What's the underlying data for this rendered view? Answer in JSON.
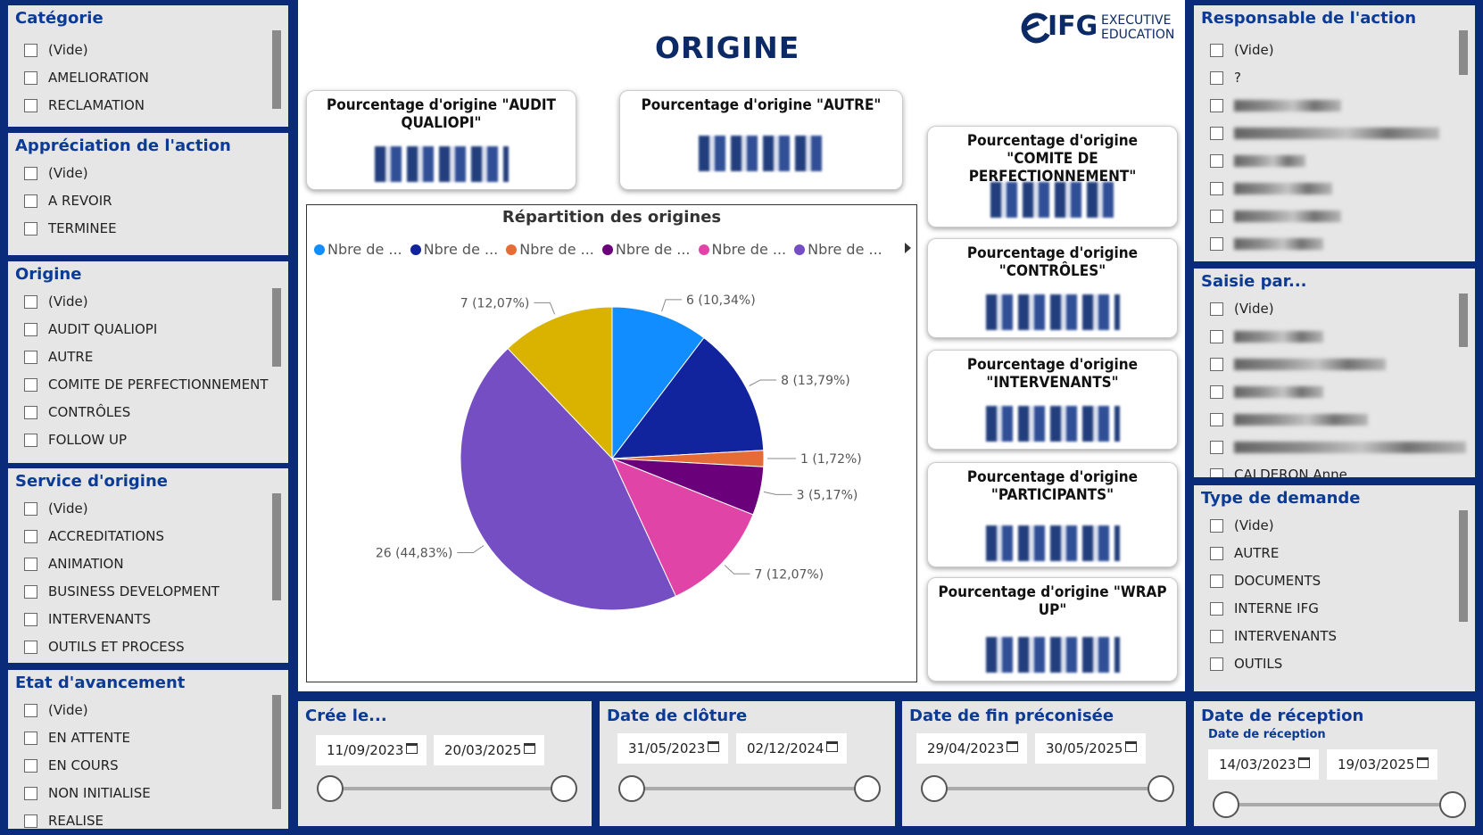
{
  "left_slicers": [
    {
      "title": "Catégorie",
      "items": [
        "(Vide)",
        "AMELIORATION",
        "RECLAMATION"
      ]
    },
    {
      "title": "Appréciation de l'action",
      "items": [
        "(Vide)",
        "A REVOIR",
        "TERMINEE"
      ]
    },
    {
      "title": "Origine",
      "items": [
        "(Vide)",
        "AUDIT QUALIOPI",
        "AUTRE",
        "COMITE DE PERFECTIONNEMENT",
        "CONTRÔLES",
        "FOLLOW UP"
      ]
    },
    {
      "title": "Service d'origine",
      "items": [
        "(Vide)",
        "ACCREDITATIONS",
        "ANIMATION",
        "BUSINESS DEVELOPMENT",
        "INTERVENANTS",
        "OUTILS ET PROCESS"
      ]
    },
    {
      "title": "Etat d'avancement",
      "items": [
        "(Vide)",
        "EN ATTENTE",
        "EN COURS",
        "NON INITIALISE",
        "REALISE"
      ]
    }
  ],
  "right_slicers": [
    {
      "title": "Responsable de l'action",
      "items": [
        "(Vide)",
        "?",
        "",
        "",
        "",
        "",
        "",
        ""
      ]
    },
    {
      "title": "Saisie par...",
      "items": [
        "(Vide)",
        "",
        "",
        "",
        "",
        "",
        "CALDERON Anne"
      ]
    },
    {
      "title": "Type de demande",
      "items": [
        "(Vide)",
        "AUTRE",
        "DOCUMENTS",
        "INTERNE IFG",
        "INTERVENANTS",
        "OUTILS"
      ]
    }
  ],
  "header": {
    "title": "ORIGINE",
    "logo_brand": "IFG",
    "logo_line1": "EXECUTIVE",
    "logo_line2": "EDUCATION"
  },
  "cards": {
    "audit": "Pourcentage d'origine \"AUDIT QUALIOPI\"",
    "autre": "Pourcentage d'origine \"AUTRE\"",
    "comite": "Pourcentage d'origine \"COMITE DE PERFECTIONNEMENT\"",
    "controles": "Pourcentage d'origine \"CONTRÔLES\"",
    "intervenants": "Pourcentage d'origine \"INTERVENANTS\"",
    "participants": "Pourcentage d'origine \"PARTICIPANTS\"",
    "wrapup": "Pourcentage d'origine \"WRAP UP\""
  },
  "chart_data": {
    "type": "pie",
    "title": "Répartition des origines",
    "legend_labels": [
      "Nbre de ...",
      "Nbre de ...",
      "Nbre de ...",
      "Nbre de ...",
      "Nbre de ...",
      "Nbre de ..."
    ],
    "slices": [
      {
        "value": 6,
        "label": "6 (10,34%)",
        "color": "#118dff"
      },
      {
        "value": 8,
        "label": "8 (13,79%)",
        "color": "#12239e"
      },
      {
        "value": 1,
        "label": "1 (1,72%)",
        "color": "#e66c37"
      },
      {
        "value": 3,
        "label": "3 (5,17%)",
        "color": "#6b007b"
      },
      {
        "value": 7,
        "label": "7 (12,07%)",
        "color": "#e044a7"
      },
      {
        "value": 26,
        "label": "26 (44,83%)",
        "color": "#744ec2"
      },
      {
        "value": 7,
        "label": "7 (12,07%)",
        "color": "#d9b300"
      }
    ]
  },
  "date_slicers": [
    {
      "title": "Crée le...",
      "subtitle": "",
      "start": "11/09/2023",
      "end": "20/03/2025"
    },
    {
      "title": "Date de clôture",
      "subtitle": "",
      "start": "31/05/2023",
      "end": "02/12/2024"
    },
    {
      "title": "Date de fin préconisée",
      "subtitle": "",
      "start": "29/04/2023",
      "end": "30/05/2025"
    },
    {
      "title": "Date de réception",
      "subtitle": "Date de réception",
      "start": "14/03/2023",
      "end": "19/03/2025"
    }
  ]
}
